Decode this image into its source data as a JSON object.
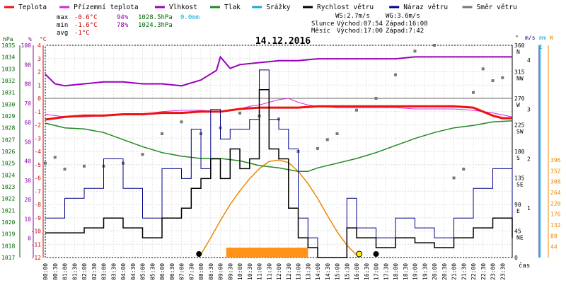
{
  "chart_data": {
    "type": "line",
    "title": "14.12.2016",
    "legend": [
      {
        "name": "Teplota",
        "color": "#ee1111"
      },
      {
        "name": "Přízemní teplota",
        "color": "#dd22dd"
      },
      {
        "name": "Vlhkost",
        "color": "#9900bb"
      },
      {
        "name": "Tlak",
        "color": "#228822"
      },
      {
        "name": "Srážky",
        "color": "#11aadd"
      },
      {
        "name": "Rychlost větru",
        "color": "#000000"
      },
      {
        "name": "Náraz větru",
        "color": "#000088"
      },
      {
        "name": "Směr větru",
        "color": "#777777"
      }
    ],
    "stats": {
      "max": {
        "label": "max",
        "temp": "-0.6°C",
        "hum": "94%",
        "press": "1028.5hPa",
        "rain": "0.0mm"
      },
      "min": {
        "label": "min",
        "temp": "-1.6°C",
        "hum": "78%",
        "press": "1024.3hPa"
      },
      "avg": {
        "label": "avg",
        "temp": "-1°C"
      }
    },
    "info": {
      "ws": "WS:2.7m/s",
      "wg": "WG:3.6m/s",
      "sun_label": "Slunce",
      "sunrise": "Východ:07:54",
      "sunset": "Západ:16:08",
      "moon_label": "Měsíc",
      "moonrise": "Východ:17:00",
      "moonset": "Západ:7:42"
    },
    "axis_units": {
      "pressure": "hPa",
      "humidity": "%",
      "temperature": "°C",
      "direction": "°",
      "wind": "m/s",
      "rain": "mm",
      "solar": "W",
      "time": "čas"
    },
    "y_axes": {
      "pressure_ticks": [
        "1035",
        "1034",
        "1033",
        "1032",
        "1031",
        "1030",
        "1029",
        "1028",
        "1027",
        "1026",
        "1025",
        "1024",
        "1023",
        "1022",
        "1021",
        "1020",
        "1019",
        "1018",
        "1017"
      ],
      "humidity_ticks": [
        "100",
        "90",
        "80",
        "70",
        "60",
        "50",
        "40",
        "30",
        "20",
        "10",
        "0"
      ],
      "temperature_ticks": [
        "4",
        "3",
        "2",
        "1",
        "0",
        "-1",
        "-2",
        "-3",
        "-4",
        "-5",
        "-6",
        "-7",
        "-8",
        "-9",
        "-10",
        "-11",
        "-12"
      ],
      "direction_ticks": [
        {
          "v": "360",
          "d": "N"
        },
        {
          "v": "315",
          "d": "NW"
        },
        {
          "v": "270",
          "d": "W"
        },
        {
          "v": "225",
          "d": "SW"
        },
        {
          "v": "180",
          "d": "S"
        },
        {
          "v": "135",
          "d": "SE"
        },
        {
          "v": "90",
          "d": "E"
        },
        {
          "v": "45",
          "d": "NE"
        },
        {
          "v": "0",
          "d": ""
        }
      ],
      "wind_ticks": [
        "4",
        "3",
        "2",
        "1"
      ],
      "rain_ticks": [
        "1"
      ],
      "solar_ticks": [
        "396",
        "352",
        "308",
        "264",
        "220",
        "176",
        "132",
        "88",
        "44"
      ]
    },
    "x_ticks": [
      "00:00",
      "00:30",
      "01:00",
      "01:30",
      "02:00",
      "02:30",
      "03:00",
      "03:30",
      "04:00",
      "04:30",
      "05:00",
      "05:30",
      "06:00",
      "06:30",
      "07:00",
      "07:30",
      "08:00",
      "08:30",
      "09:00",
      "09:30",
      "10:00",
      "10:30",
      "11:00",
      "11:30",
      "12:00",
      "12:30",
      "13:00",
      "13:30",
      "14:00",
      "14:30",
      "15:00",
      "15:30",
      "16:00",
      "16:30",
      "17:00",
      "17:30",
      "18:00",
      "18:30",
      "19:00",
      "19:30",
      "20:00",
      "20:30",
      "21:00",
      "21:30",
      "22:00",
      "22:30",
      "23:00",
      "23:30"
    ],
    "series": {
      "temperature": {
        "name": "Teplota",
        "x": [
          0,
          1,
          2,
          3,
          4,
          5,
          6,
          7,
          8,
          9,
          10,
          11,
          12,
          13,
          14,
          15,
          16,
          17,
          18,
          19,
          20,
          21,
          22,
          23,
          23.5,
          24
        ],
        "y": [
          -1.6,
          -1.4,
          -1.3,
          -1.3,
          -1.2,
          -1.2,
          -1.1,
          -1.1,
          -1.0,
          -1.0,
          -0.8,
          -0.7,
          -0.7,
          -0.7,
          -0.6,
          -0.6,
          -0.6,
          -0.6,
          -0.6,
          -0.6,
          -0.6,
          -0.6,
          -0.7,
          -1.3,
          -1.5,
          -1.5
        ]
      },
      "ground_temperature": {
        "name": "Přízemní teplota",
        "x": [
          0,
          1,
          2,
          3,
          4,
          5,
          6,
          7,
          8,
          9,
          10,
          10.5,
          11,
          11.5,
          12,
          12.5,
          13,
          13.5,
          14,
          15,
          16,
          17,
          18,
          19,
          20,
          21,
          22,
          23,
          24
        ],
        "y": [
          -1.2,
          -1.4,
          -1.4,
          -1.3,
          -1.2,
          -1.2,
          -1.0,
          -0.9,
          -0.9,
          -1.0,
          -0.8,
          -0.6,
          -0.5,
          -0.3,
          -0.1,
          0.0,
          -0.3,
          -0.5,
          -0.6,
          -0.7,
          -0.7,
          -0.7,
          -0.7,
          -0.8,
          -0.8,
          -0.8,
          -0.9,
          -1.1,
          -1.4
        ]
      },
      "humidity": {
        "name": "Vlhkost",
        "x": [
          0,
          0.5,
          1,
          2,
          3,
          4,
          5,
          6,
          7,
          8,
          8.8,
          9,
          9.5,
          10,
          11,
          12,
          13,
          14,
          15,
          16,
          17,
          18,
          19,
          20,
          21,
          22,
          23,
          24
        ],
        "y": [
          85,
          80,
          79,
          80,
          81,
          81,
          80,
          80,
          79,
          82,
          87,
          94,
          88,
          90,
          91,
          92,
          92,
          93,
          93,
          93,
          93,
          93,
          94,
          94,
          94,
          94,
          94,
          94
        ]
      },
      "pressure": {
        "name": "Tlak",
        "x": [
          0,
          1,
          2,
          3,
          4,
          5,
          6,
          7,
          8,
          9,
          10,
          11,
          12,
          13,
          13.5,
          14,
          15,
          16,
          17,
          18,
          19,
          20,
          21,
          22,
          23,
          24
        ],
        "y": [
          1028.4,
          1028.0,
          1027.9,
          1027.6,
          1027.0,
          1026.4,
          1025.9,
          1025.6,
          1025.4,
          1025.4,
          1025.2,
          1024.8,
          1024.6,
          1024.3,
          1024.3,
          1024.6,
          1025.0,
          1025.4,
          1025.9,
          1026.5,
          1027.1,
          1027.6,
          1028.0,
          1028.2,
          1028.5,
          1028.6
        ]
      },
      "wind_speed": {
        "name": "Rychlost větru",
        "x": [
          0,
          1,
          2,
          3,
          4,
          5,
          6,
          7,
          7.5,
          8,
          8.5,
          9,
          9.5,
          10,
          10.5,
          11,
          11.5,
          12,
          12.5,
          13,
          13.5,
          14,
          15,
          15.5,
          16,
          17,
          18,
          19,
          20,
          21,
          22,
          23,
          24
        ],
        "y": [
          0.5,
          0.5,
          0.6,
          0.8,
          0.6,
          0.4,
          0.8,
          1.0,
          1.4,
          1.6,
          2.0,
          1.6,
          2.2,
          1.8,
          2.0,
          3.4,
          2.2,
          2.0,
          1.0,
          0.4,
          0.2,
          0,
          0,
          0.6,
          0.4,
          0.2,
          0.4,
          0.3,
          0.2,
          0.4,
          0.6,
          0.8,
          0.4
        ]
      },
      "wind_gust": {
        "name": "Náraz větru",
        "x": [
          0,
          1,
          2,
          3,
          4,
          5,
          6,
          7,
          7.5,
          8,
          8.5,
          9,
          9.5,
          10,
          10.5,
          11,
          11.5,
          12,
          12.5,
          13,
          13.5,
          14,
          15,
          15.5,
          16,
          17,
          18,
          19,
          20,
          21,
          22,
          23,
          24
        ],
        "y": [
          0.8,
          1.2,
          1.4,
          2.0,
          1.4,
          0.8,
          1.8,
          1.6,
          2.6,
          1.8,
          3.0,
          2.4,
          2.6,
          2.6,
          2.8,
          3.8,
          2.8,
          2.6,
          2.2,
          0.8,
          0.4,
          0,
          0,
          1.2,
          0.6,
          0.4,
          0.8,
          0.6,
          0.4,
          0.8,
          1.4,
          1.8,
          0.8
        ]
      },
      "wind_direction": {
        "name": "Směr větru",
        "x": [
          0,
          0.5,
          1,
          2,
          3,
          4,
          5,
          6,
          7,
          8,
          9,
          10,
          11,
          12,
          13,
          14,
          14.5,
          15,
          16,
          17,
          18,
          19,
          20,
          21,
          21.5,
          22,
          22.5,
          23,
          23.5
        ],
        "y": [
          160,
          170,
          150,
          155,
          155,
          160,
          175,
          210,
          230,
          210,
          220,
          245,
          240,
          235,
          180,
          185,
          200,
          210,
          250,
          270,
          310,
          350,
          360,
          135,
          150,
          280,
          320,
          300,
          305
        ]
      },
      "solar": {
        "name": "Slunce",
        "x": [
          7.9,
          8.5,
          9,
          9.5,
          10,
          10.5,
          11,
          11.5,
          12,
          12.5,
          13,
          13.5,
          14,
          14.5,
          15,
          15.5,
          16,
          16.1
        ],
        "y": [
          0,
          80,
          150,
          215,
          270,
          320,
          360,
          390,
          395,
          385,
          350,
          300,
          240,
          170,
          105,
          50,
          10,
          0
        ]
      }
    },
    "markers": {
      "sunrise_time": "07:54",
      "sunset_time": "16:08",
      "moonrise_time": "17:00",
      "moonset_time": "7:42"
    }
  }
}
